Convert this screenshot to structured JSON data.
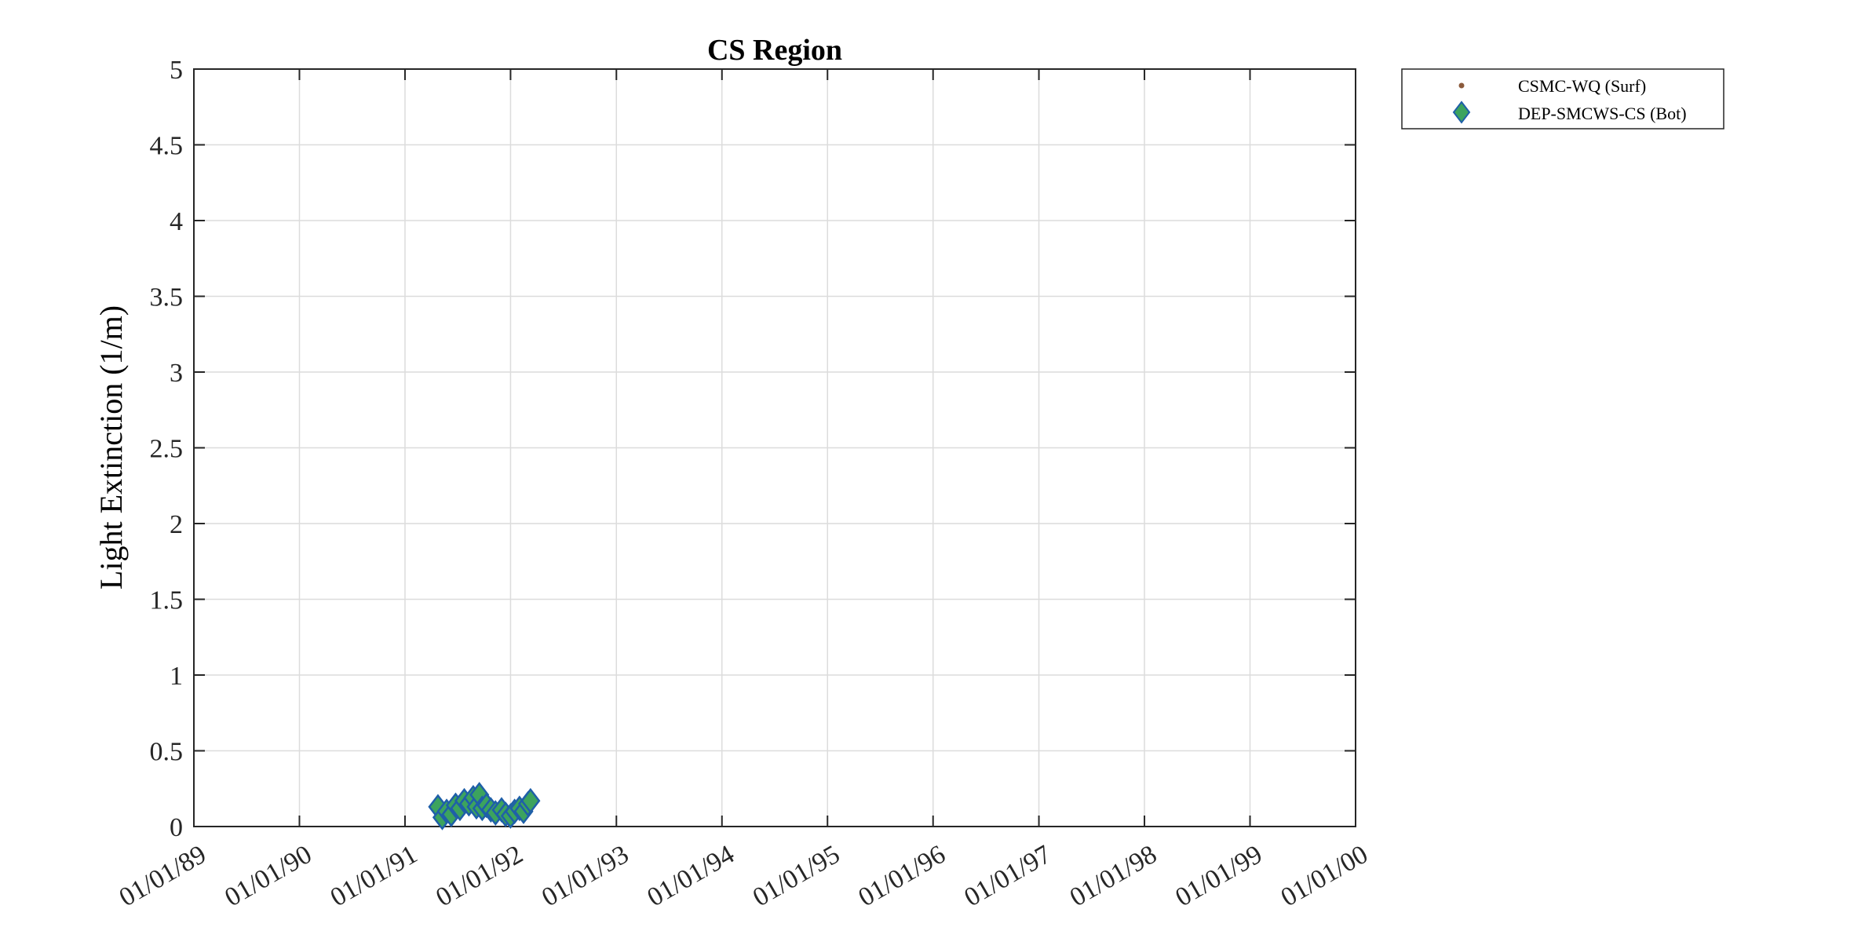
{
  "chart_data": {
    "type": "scatter",
    "title": "CS Region",
    "xlabel": "",
    "ylabel": "Light Extinction (1/m)",
    "xlim": [
      "1989-01-01",
      "2000-01-01"
    ],
    "ylim": [
      0,
      5
    ],
    "x_tick_labels": [
      "01/01/89",
      "01/01/90",
      "01/01/91",
      "01/01/92",
      "01/01/93",
      "01/01/94",
      "01/01/95",
      "01/01/96",
      "01/01/97",
      "01/01/98",
      "01/01/99",
      "01/01/00"
    ],
    "y_tick_labels": [
      "0",
      "0.5",
      "1",
      "1.5",
      "2",
      "2.5",
      "3",
      "3.5",
      "4",
      "4.5",
      "5"
    ],
    "grid": true,
    "legend_position": "outside-top-right",
    "series": [
      {
        "name": "CSMC-WQ (Surf)",
        "marker": "dot",
        "color": "#8B5A3C",
        "points": []
      },
      {
        "name": "DEP-SMCWS-CS (Bot)",
        "marker": "diamond",
        "color": "#3CA35E",
        "edge_color": "#1F5FA8",
        "points": [
          {
            "x": "1991-04-25",
            "y": 0.13
          },
          {
            "x": "1991-05-10",
            "y": 0.06
          },
          {
            "x": "1991-05-25",
            "y": 0.1
          },
          {
            "x": "1991-06-10",
            "y": 0.08
          },
          {
            "x": "1991-06-25",
            "y": 0.14
          },
          {
            "x": "1991-07-10",
            "y": 0.12
          },
          {
            "x": "1991-07-25",
            "y": 0.17
          },
          {
            "x": "1991-08-10",
            "y": 0.15
          },
          {
            "x": "1991-08-25",
            "y": 0.19
          },
          {
            "x": "1991-09-05",
            "y": 0.13
          },
          {
            "x": "1991-09-15",
            "y": 0.21
          },
          {
            "x": "1991-09-25",
            "y": 0.12
          },
          {
            "x": "1991-10-10",
            "y": 0.14
          },
          {
            "x": "1991-10-25",
            "y": 0.11
          },
          {
            "x": "1991-11-10",
            "y": 0.09
          },
          {
            "x": "1991-12-01",
            "y": 0.11
          },
          {
            "x": "1991-12-15",
            "y": 0.08
          },
          {
            "x": "1992-01-01",
            "y": 0.07
          },
          {
            "x": "1992-01-15",
            "y": 0.1
          },
          {
            "x": "1992-02-01",
            "y": 0.12
          },
          {
            "x": "1992-02-15",
            "y": 0.1
          },
          {
            "x": "1992-03-01",
            "y": 0.15
          },
          {
            "x": "1992-03-10",
            "y": 0.17
          }
        ]
      }
    ]
  }
}
